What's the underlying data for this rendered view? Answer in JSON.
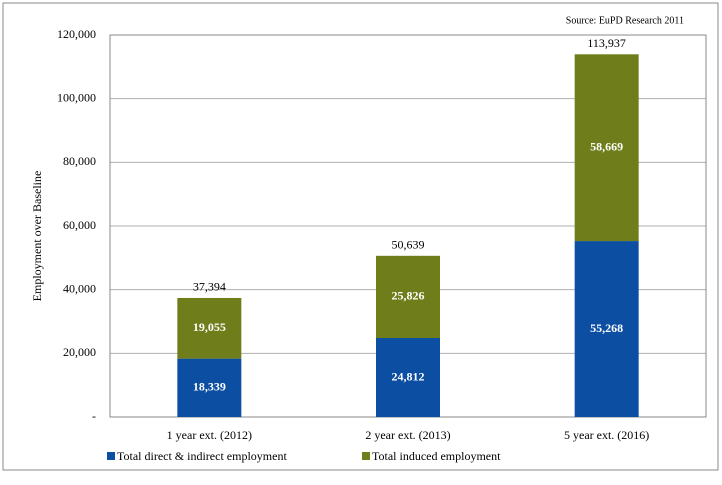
{
  "chart_data": {
    "type": "stacked_bar",
    "source": "Source: EuPD Research 2011",
    "y_label": "Employment over Baseline",
    "categories": [
      "1 year ext. (2012)",
      "2 year ext. (2013)",
      "5 year ext. (2016)"
    ],
    "series": [
      {
        "name": "Total direct & indirect employment",
        "color": "#0b4ea2",
        "values": [
          18339,
          24812,
          55268
        ],
        "value_labels": [
          "18,339",
          "24,812",
          "55,268"
        ]
      },
      {
        "name": "Total induced employment",
        "color": "#6f7e1b",
        "values": [
          19055,
          25826,
          58669
        ],
        "value_labels": [
          "19,055",
          "25,826",
          "58,669"
        ]
      }
    ],
    "totals": {
      "values": [
        37394,
        50639,
        113937
      ],
      "value_labels": [
        "37,394",
        "50,639",
        "113,937"
      ]
    },
    "ylim": [
      0,
      120000
    ],
    "yticks": [
      {
        "value": 0,
        "label": "-"
      },
      {
        "value": 20000,
        "label": "20,000"
      },
      {
        "value": 40000,
        "label": "40,000"
      },
      {
        "value": 60000,
        "label": "60,000"
      },
      {
        "value": 80000,
        "label": "80,000"
      },
      {
        "value": 100000,
        "label": "100,000"
      },
      {
        "value": 120000,
        "label": "120,000"
      }
    ],
    "grid": true
  }
}
